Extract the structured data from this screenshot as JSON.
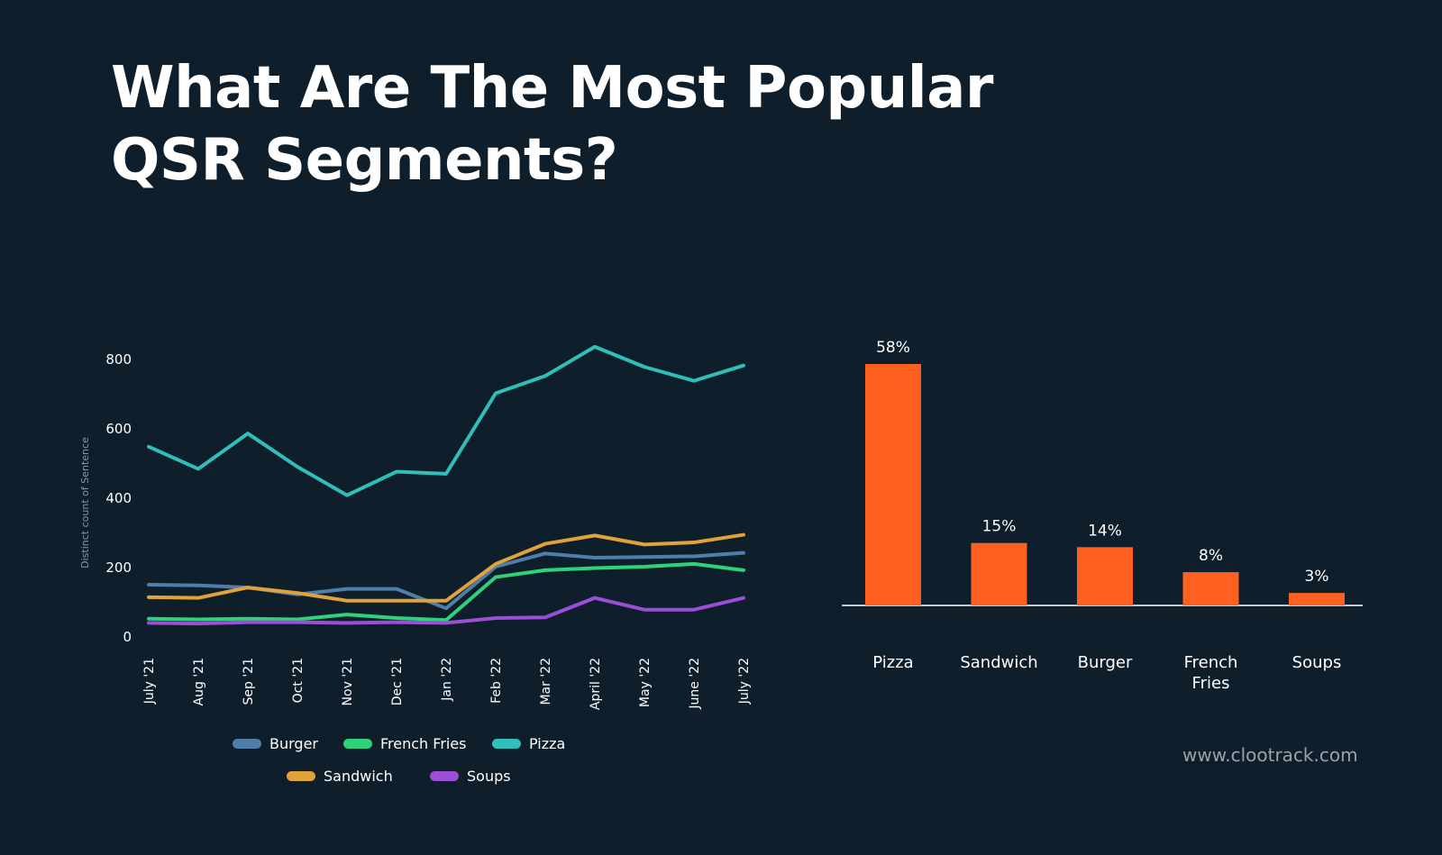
{
  "title": {
    "line1": "What Are The Most Popular",
    "line2": "QSR Segments?"
  },
  "watermark": "www.clootrack.com",
  "colors": {
    "background": "#0f1e2b",
    "burger": "#4f7ea8",
    "french_fries": "#2ed27a",
    "pizza": "#2fbfb8",
    "sandwich": "#e0a33b",
    "soups": "#9a4fd6",
    "bar": "#ff5f1f"
  },
  "chart_data": [
    {
      "type": "line",
      "title": "",
      "xlabel": "",
      "ylabel": "Distinct count of Sentence",
      "ylim": [
        0,
        800
      ],
      "yticks": [
        0,
        200,
        400,
        600,
        800
      ],
      "grid": false,
      "legend": "bottom",
      "categories": [
        "July '21",
        "Aug '21",
        "Sep '21",
        "Oct '21",
        "Nov '21",
        "Dec '21",
        "Jan '22",
        "Feb '22",
        "Mar '22",
        "April '22",
        "May '22",
        "June '22",
        "July '22"
      ],
      "series": [
        {
          "name": "Burger",
          "color": "#4f7ea8",
          "values": [
            148,
            146,
            140,
            120,
            136,
            136,
            80,
            200,
            238,
            226,
            228,
            230,
            240
          ]
        },
        {
          "name": "French Fries",
          "color": "#2ed27a",
          "values": [
            50,
            48,
            50,
            48,
            62,
            52,
            46,
            170,
            190,
            196,
            200,
            208,
            190
          ]
        },
        {
          "name": "Pizza",
          "color": "#2fbfb8",
          "values": [
            546,
            482,
            584,
            488,
            406,
            474,
            468,
            700,
            750,
            834,
            776,
            736,
            780
          ]
        },
        {
          "name": "Sandwich",
          "color": "#e0a33b",
          "values": [
            112,
            110,
            140,
            124,
            102,
            102,
            102,
            208,
            266,
            290,
            264,
            270,
            292
          ]
        },
        {
          "name": "Soups",
          "color": "#9a4fd6",
          "values": [
            38,
            36,
            40,
            40,
            38,
            40,
            38,
            52,
            54,
            110,
            76,
            76,
            110
          ]
        }
      ]
    },
    {
      "type": "bar",
      "title": "",
      "xlabel": "",
      "ylabel": "",
      "ylim": [
        0,
        60
      ],
      "grid": false,
      "categories": [
        "Pizza",
        "Sandwich",
        "Burger",
        "French Fries",
        "Soups"
      ],
      "values": [
        58,
        15,
        14,
        8,
        3
      ],
      "value_labels": [
        "58%",
        "15%",
        "14%",
        "8%",
        "3%"
      ]
    }
  ]
}
